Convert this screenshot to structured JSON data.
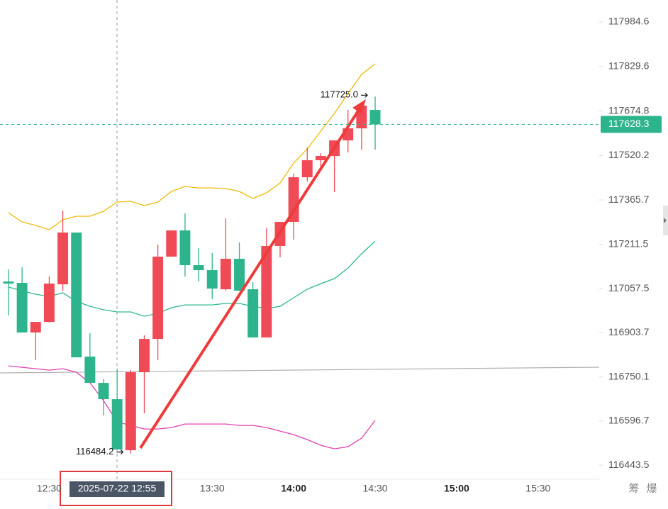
{
  "chart_data": {
    "type": "candlestick",
    "categories": [
      null,
      null,
      null,
      "12:30",
      null,
      null,
      null,
      null,
      null,
      null,
      null,
      null,
      null,
      null,
      null,
      "13:30",
      null,
      null,
      null,
      null,
      null,
      "14:00",
      null,
      null,
      null,
      null,
      null,
      "14:30",
      null,
      null,
      null,
      null,
      null,
      "15:00",
      null,
      null,
      null,
      null,
      null,
      "15:30",
      null,
      null,
      null,
      null
    ],
    "open": [
      117082.2,
      117077.3,
      116904.7,
      116941.7,
      117072.3,
      117252.3,
      116820.9,
      116729.6,
      116672.9,
      116495.4,
      116766.6,
      116882.5,
      117168.5,
      117259.7,
      117138.9,
      117121.6,
      117055.1,
      117161.1,
      117055.1,
      116887.4,
      117205.5,
      117289.3,
      117444.6,
      117503.8,
      117518.6,
      117572.8,
      117614.7,
      117678.8,
      null,
      null,
      null,
      null,
      null,
      null,
      null,
      null,
      null,
      null,
      null,
      null,
      null,
      null,
      null,
      null
    ],
    "high": [
      117124.1,
      117131.5,
      116941.7,
      117099.5,
      117328.7,
      117252.3,
      116902.2,
      116742.0,
      116778.9,
      116774.0,
      116894.8,
      117210.4,
      117259.7,
      117318.9,
      117198.1,
      117180.8,
      117301.6,
      117217.8,
      117079.7,
      117267.1,
      117289.3,
      117457.0,
      117548.2,
      117528.5,
      117572.8,
      117678.8,
      117693.6,
      117725.0,
      null,
      null,
      null,
      null,
      null,
      null,
      null,
      null,
      null,
      null,
      null,
      null,
      null,
      null,
      null,
      null
    ],
    "low": [
      116963.9,
      116904.7,
      116808.5,
      116939.2,
      117050.1,
      116818.4,
      116729.6,
      116616.2,
      116497.9,
      116484.2,
      116623.6,
      116808.5,
      117168.5,
      117099.5,
      117082.2,
      117020.6,
      117050.1,
      117050.1,
      116887.4,
      116887.4,
      117166.0,
      117227.7,
      117429.8,
      117474.2,
      117392.8,
      117530.9,
      117540.8,
      117540.8,
      null,
      null,
      null,
      null,
      null,
      null,
      null,
      null,
      null,
      null,
      null,
      null,
      null,
      null,
      null,
      null
    ],
    "close": [
      117074.8,
      116904.7,
      116941.7,
      117074.8,
      117252.3,
      116818.4,
      116729.6,
      116672.9,
      116497.9,
      116766.6,
      116882.5,
      117168.5,
      117259.7,
      117138.9,
      117121.6,
      117057.5,
      117161.1,
      117050.1,
      116887.4,
      117205.5,
      117289.3,
      117444.6,
      117503.8,
      117518.6,
      117572.8,
      117614.7,
      117693.6,
      117628.3,
      null,
      null,
      null,
      null,
      null,
      null,
      null,
      null,
      null,
      null,
      null,
      null,
      null,
      null,
      null,
      null
    ],
    "up_color": "#ef4a55",
    "down_color": "#2db48c",
    "overlays": [
      {
        "color": "#f0b90b",
        "values": [
          117321.3,
          117289.3,
          117277.0,
          117262.2,
          117296.7,
          117309.0,
          117309.0,
          117326.3,
          117358.3,
          117360.8,
          117346.0,
          117358.3,
          117395.3,
          117412.6,
          117407.6,
          117407.6,
          117405.2,
          117395.3,
          117370.7,
          117390.4,
          117424.9,
          117493.9,
          117543.2,
          117604.9,
          117666.5,
          117735.6,
          117802.1,
          117839.1,
          null,
          null,
          null,
          null,
          null,
          null,
          null,
          null,
          null,
          null,
          null,
          null,
          null,
          null,
          null,
          null
        ]
      },
      {
        "color": "#2fb891",
        "values": [
          117062.5,
          117050.1,
          117037.8,
          117030.4,
          117042.7,
          117013.2,
          116995.9,
          116983.6,
          116976.2,
          116976.2,
          116961.4,
          116971.2,
          116991.0,
          117000.8,
          117000.8,
          117000.8,
          117005.8,
          117005.8,
          116995.9,
          116988.5,
          116995.9,
          117025.5,
          117055.1,
          117074.8,
          117092.1,
          117129.0,
          117178.4,
          117222.7,
          null,
          null,
          null,
          null,
          null,
          null,
          null,
          null,
          null,
          null,
          null,
          null,
          null,
          null,
          null,
          null
        ]
      },
      {
        "color": "#e040b0",
        "values": [
          116788.8,
          116783.9,
          116778.9,
          116774.0,
          116778.9,
          116766.6,
          116729.6,
          116668.0,
          116594.0,
          116581.7,
          116569.4,
          116569.4,
          116574.3,
          116586.6,
          116586.6,
          116586.6,
          116586.6,
          116581.7,
          116581.7,
          116574.3,
          116562.0,
          116549.6,
          116532.4,
          116512.7,
          116500.3,
          116507.7,
          116537.3,
          116599.0,
          null,
          null,
          null,
          null,
          null,
          null,
          null,
          null,
          null,
          null,
          null,
          null,
          null,
          null,
          null,
          null
        ]
      }
    ],
    "ylim": [
      116397,
      118061
    ],
    "yticks": [
      117984.6,
      117829.6,
      117674.8,
      117520.2,
      117365.7,
      117211.5,
      117057.5,
      116903.7,
      116750.1,
      116596.7,
      116443.5
    ],
    "last_price": 117628.3,
    "extremes": [
      {
        "value": 117725.0,
        "label": "117725.0"
      },
      {
        "value": 116484.2,
        "label": "116484.2"
      }
    ],
    "crosshair_time": "2025-07-22 12:55",
    "toolbar": [
      "筹",
      "爆"
    ]
  }
}
